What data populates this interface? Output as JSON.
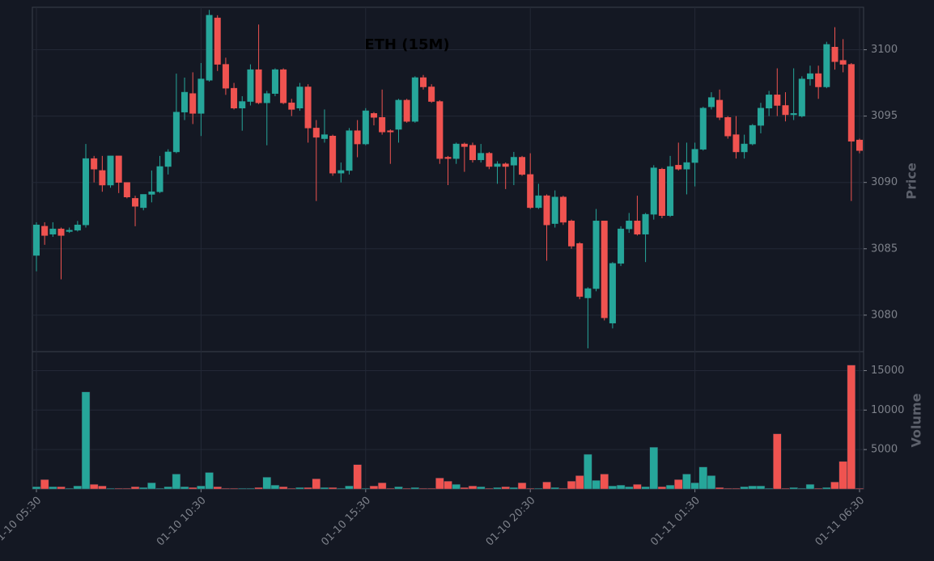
{
  "chart_data": {
    "type": "candlestick",
    "title": "ETH (15M)",
    "ylabel": "Price",
    "volume_label": "Volume",
    "up_color": "#26a69a",
    "down_color": "#ef5350",
    "grid": true,
    "ylim": [
      3077.25,
      3103.2
    ],
    "yticks": [
      3080,
      3085,
      3090,
      3095,
      3100
    ],
    "volume_ylim": [
      0,
      17400
    ],
    "volume_yticks": [
      5000,
      10000,
      15000
    ],
    "categories": [
      "01-10 05:30",
      null,
      null,
      null,
      null,
      null,
      null,
      null,
      null,
      null,
      null,
      null,
      null,
      null,
      null,
      null,
      null,
      null,
      null,
      null,
      "01-10 10:30",
      null,
      null,
      null,
      null,
      null,
      null,
      null,
      null,
      null,
      null,
      null,
      null,
      null,
      null,
      null,
      null,
      null,
      null,
      null,
      "01-10 15:30",
      null,
      null,
      null,
      null,
      null,
      null,
      null,
      null,
      null,
      null,
      null,
      null,
      null,
      null,
      null,
      null,
      null,
      null,
      null,
      "01-10 20:30",
      null,
      null,
      null,
      null,
      null,
      null,
      null,
      null,
      null,
      null,
      null,
      null,
      null,
      null,
      null,
      null,
      null,
      null,
      null,
      "01-11 01:30",
      null,
      null,
      null,
      null,
      null,
      null,
      null,
      null,
      null,
      null,
      null,
      null,
      null,
      null,
      null,
      null,
      null,
      null,
      null,
      "01-11 06:30"
    ],
    "open": [
      3084.5,
      3086.7,
      3086.1,
      3086.5,
      3086.3,
      3086.4,
      3086.8,
      3091.8,
      3090.9,
      3089.8,
      3092.0,
      3090.0,
      3088.8,
      3088.1,
      3089.1,
      3089.3,
      3091.2,
      3092.3,
      3095.3,
      3096.7,
      3095.2,
      3097.7,
      3102.4,
      3098.9,
      3097.1,
      3095.6,
      3096.1,
      3098.5,
      3096.0,
      3096.7,
      3098.5,
      3096.0,
      3095.6,
      3097.2,
      3094.1,
      3093.3,
      3093.5,
      3090.7,
      3090.9,
      3093.9,
      3092.9,
      3095.2,
      3094.9,
      3093.9,
      3094.0,
      3096.2,
      3094.6,
      3097.9,
      3097.2,
      3096.1,
      3091.9,
      3091.8,
      3092.9,
      3092.8,
      3091.7,
      3092.2,
      3091.2,
      3091.4,
      3091.3,
      3091.9,
      3090.6,
      3088.1,
      3089.0,
      3086.9,
      3088.9,
      3087.1,
      3085.4,
      3081.3,
      3082.0,
      3087.1,
      3079.4,
      3083.9,
      3086.5,
      3087.1,
      3086.1,
      3087.6,
      3091.0,
      3087.5,
      3091.3,
      3091.0,
      3091.5,
      3092.5,
      3095.7,
      3096.2,
      3094.9,
      3093.6,
      3092.3,
      3092.9,
      3094.3,
      3095.6,
      3096.6,
      3095.8,
      3095.1,
      3095.0,
      3097.8,
      3098.2,
      3097.2,
      3100.2,
      3099.2,
      3098.9,
      3093.2
    ],
    "high": [
      3087.0,
      3087.0,
      3087.0,
      3086.6,
      3086.6,
      3087.1,
      3092.9,
      3092.0,
      3092.0,
      3092.0,
      3092.0,
      3090.0,
      3089.0,
      3089.1,
      3090.9,
      3092.0,
      3092.5,
      3098.2,
      3097.9,
      3098.3,
      3099.0,
      3103.0,
      3102.6,
      3099.4,
      3097.5,
      3096.5,
      3098.9,
      3101.9,
      3096.9,
      3098.6,
      3098.6,
      3096.3,
      3097.5,
      3097.4,
      3094.7,
      3095.5,
      3093.6,
      3091.5,
      3094.1,
      3094.7,
      3095.6,
      3095.3,
      3097.0,
      3094.0,
      3096.3,
      3096.3,
      3098.0,
      3098.1,
      3097.4,
      3096.2,
      3092.0,
      3093.0,
      3093.0,
      3093.0,
      3092.9,
      3092.3,
      3091.6,
      3091.5,
      3092.3,
      3092.0,
      3092.2,
      3089.9,
      3089.1,
      3089.4,
      3089.0,
      3087.2,
      3085.5,
      3082.1,
      3088.0,
      3087.1,
      3084.0,
      3086.7,
      3087.7,
      3089.0,
      3087.7,
      3091.3,
      3091.1,
      3092.0,
      3093.0,
      3093.0,
      3093.0,
      3095.7,
      3096.8,
      3097.0,
      3095.0,
      3095.0,
      3093.6,
      3094.4,
      3096.0,
      3096.9,
      3098.6,
      3096.8,
      3098.6,
      3098.0,
      3098.8,
      3098.8,
      3100.6,
      3101.7,
      3100.8,
      3099.0,
      3093.3
    ],
    "low": [
      3083.3,
      3085.3,
      3085.9,
      3082.7,
      3086.2,
      3086.3,
      3086.6,
      3090.0,
      3089.3,
      3089.6,
      3089.2,
      3088.8,
      3086.7,
      3087.9,
      3088.5,
      3089.2,
      3090.6,
      3092.2,
      3094.7,
      3094.4,
      3093.5,
      3097.6,
      3098.4,
      3096.6,
      3095.5,
      3093.9,
      3095.8,
      3095.9,
      3092.8,
      3096.5,
      3095.9,
      3095.0,
      3095.4,
      3093.0,
      3088.6,
      3093.0,
      3090.5,
      3090.0,
      3090.6,
      3091.9,
      3092.8,
      3094.3,
      3093.6,
      3091.4,
      3093.0,
      3094.5,
      3094.5,
      3097.0,
      3096.0,
      3091.4,
      3089.8,
      3091.4,
      3090.8,
      3091.5,
      3091.5,
      3091.0,
      3089.9,
      3089.5,
      3089.8,
      3090.5,
      3088.0,
      3088.0,
      3084.1,
      3086.6,
      3086.8,
      3085.0,
      3081.2,
      3077.5,
      3081.8,
      3079.6,
      3079.0,
      3083.7,
      3086.2,
      3086.0,
      3084.0,
      3087.2,
      3087.3,
      3087.4,
      3090.9,
      3089.1,
      3089.7,
      3092.4,
      3095.5,
      3094.7,
      3093.3,
      3091.8,
      3091.8,
      3092.8,
      3093.7,
      3095.0,
      3095.0,
      3094.6,
      3094.7,
      3094.9,
      3097.3,
      3096.3,
      3097.1,
      3098.5,
      3098.3,
      3088.6,
      3092.2
    ],
    "close": [
      3086.8,
      3086.0,
      3086.5,
      3086.0,
      3086.4,
      3086.8,
      3091.8,
      3091.0,
      3089.8,
      3092.0,
      3090.0,
      3088.9,
      3088.2,
      3089.1,
      3089.3,
      3091.2,
      3092.3,
      3095.3,
      3096.8,
      3095.2,
      3097.8,
      3102.6,
      3098.9,
      3097.1,
      3095.6,
      3096.1,
      3098.5,
      3096.0,
      3096.7,
      3098.5,
      3096.0,
      3095.5,
      3097.2,
      3094.1,
      3093.4,
      3093.6,
      3090.7,
      3090.9,
      3093.9,
      3092.9,
      3095.4,
      3094.9,
      3093.8,
      3093.8,
      3096.2,
      3094.6,
      3097.9,
      3097.2,
      3096.1,
      3091.8,
      3091.8,
      3092.9,
      3092.7,
      3091.7,
      3092.2,
      3091.2,
      3091.4,
      3091.2,
      3091.9,
      3090.6,
      3088.1,
      3089.0,
      3086.8,
      3088.9,
      3087.0,
      3085.2,
      3081.4,
      3082.0,
      3087.1,
      3079.8,
      3083.9,
      3086.5,
      3087.1,
      3086.1,
      3087.6,
      3091.1,
      3087.5,
      3091.2,
      3091.0,
      3091.5,
      3092.5,
      3095.6,
      3096.4,
      3094.9,
      3093.5,
      3092.3,
      3092.9,
      3094.3,
      3095.6,
      3096.6,
      3095.8,
      3095.1,
      3095.2,
      3097.8,
      3098.2,
      3097.2,
      3100.4,
      3099.1,
      3098.9,
      3093.1,
      3092.4
    ],
    "volume": [
      300,
      1200,
      300,
      300,
      100,
      400,
      12300,
      600,
      400,
      100,
      100,
      100,
      300,
      200,
      800,
      100,
      300,
      1900,
      300,
      200,
      400,
      2100,
      300,
      100,
      100,
      100,
      100,
      200,
      1500,
      500,
      300,
      100,
      200,
      200,
      1300,
      200,
      200,
      100,
      400,
      3100,
      100,
      400,
      800,
      100,
      300,
      100,
      200,
      100,
      100,
      1400,
      1000,
      600,
      200,
      400,
      300,
      100,
      200,
      300,
      200,
      800,
      100,
      100,
      900,
      200,
      100,
      1000,
      1700,
      4400,
      1100,
      1900,
      400,
      500,
      300,
      600,
      300,
      5300,
      300,
      500,
      1200,
      1900,
      800,
      2800,
      1700,
      200,
      100,
      100,
      300,
      400,
      400,
      100,
      7000,
      100,
      200,
      100,
      600,
      100,
      200,
      900,
      3500,
      15700,
      100
    ]
  }
}
